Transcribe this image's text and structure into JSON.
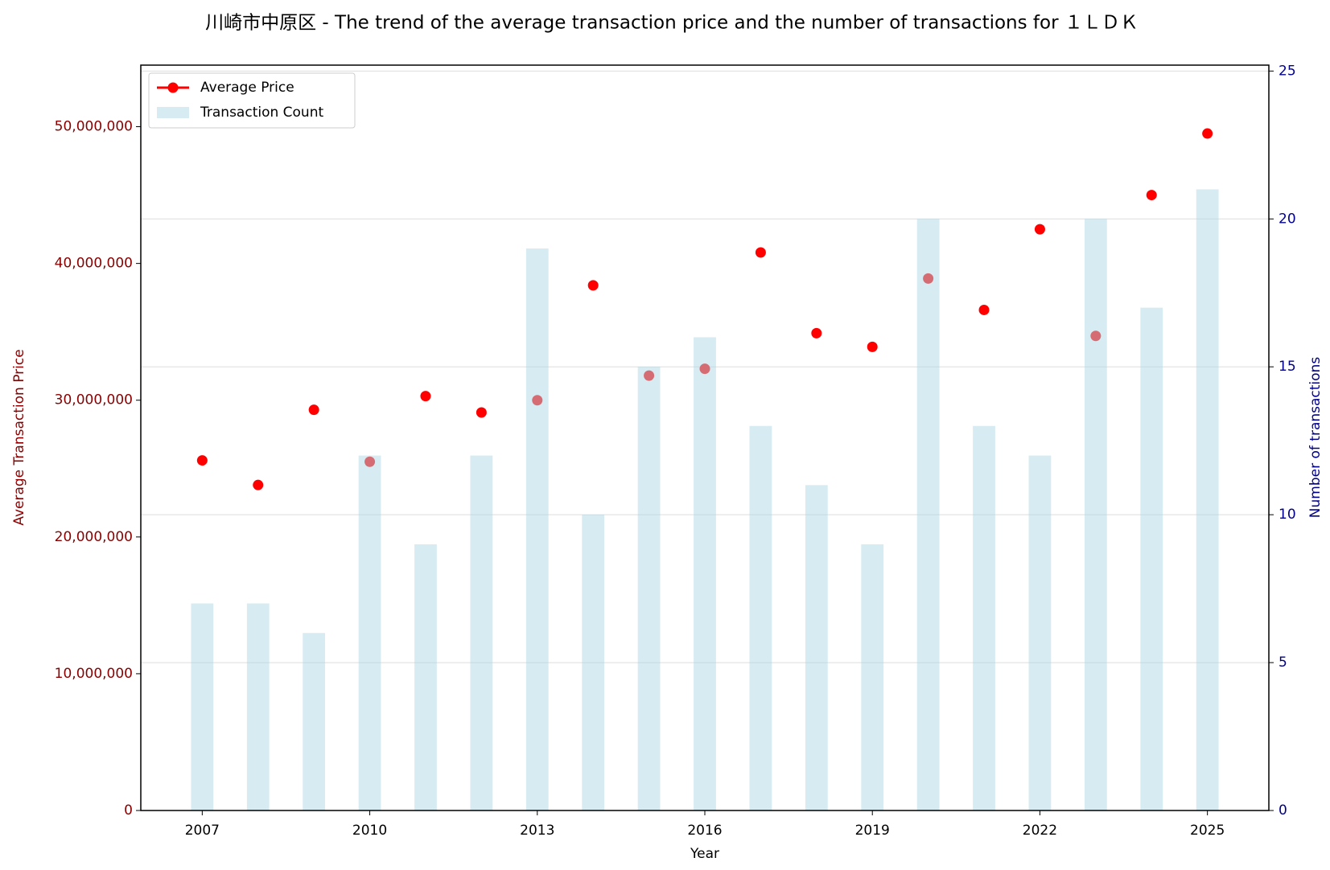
{
  "chart_data": {
    "type": "bar-line",
    "title": "川崎市中原区 - The trend of the average transaction price and the number of transactions for １ＬＤＫ",
    "x_label": "Year",
    "y_label": "Average Transaction Price",
    "y2_label": "Number of transactions",
    "x": [
      2007,
      2008,
      2009,
      2010,
      2011,
      2012,
      2013,
      2014,
      2015,
      2016,
      2017,
      2018,
      2019,
      2020,
      2021,
      2022,
      2023,
      2024,
      2025
    ],
    "series": [
      {
        "name": "Average Price",
        "color": "#ff0000",
        "type": "line",
        "values": [
          25600000,
          23800000,
          29300000,
          25500000,
          30300000,
          29100000,
          30000000,
          38400000,
          31800000,
          32300000,
          40800000,
          34900000,
          33900000,
          38900000,
          36600000,
          42500000,
          34700000,
          45000000,
          49500000
        ]
      },
      {
        "name": "Transaction Count",
        "color": "#add8e6",
        "type": "bar",
        "axis": "y2",
        "values": [
          7,
          7,
          6,
          12,
          9,
          12,
          19,
          10,
          15,
          16,
          13,
          11,
          9,
          20,
          13,
          12,
          20,
          17,
          21
        ]
      }
    ],
    "xlim": [
      2005.9,
      2026.1
    ],
    "xticks": [
      2007,
      2010,
      2013,
      2016,
      2019,
      2022,
      2025
    ],
    "ylim": [
      0,
      54500000
    ],
    "yticks": [
      0,
      {
        "value": 10000000,
        "label": "10,000,000"
      },
      {
        "value": 20000000,
        "label": "20,000,000"
      },
      {
        "value": 30000000,
        "label": "30,000,000"
      },
      {
        "value": 40000000,
        "label": "40,000,000"
      },
      {
        "value": 50000000,
        "label": "50,000,000"
      }
    ],
    "y2lim": [
      0,
      25.2
    ],
    "y2ticks": [
      0,
      5,
      10,
      15,
      20,
      25
    ],
    "grid": true,
    "legend": "upper-left"
  }
}
